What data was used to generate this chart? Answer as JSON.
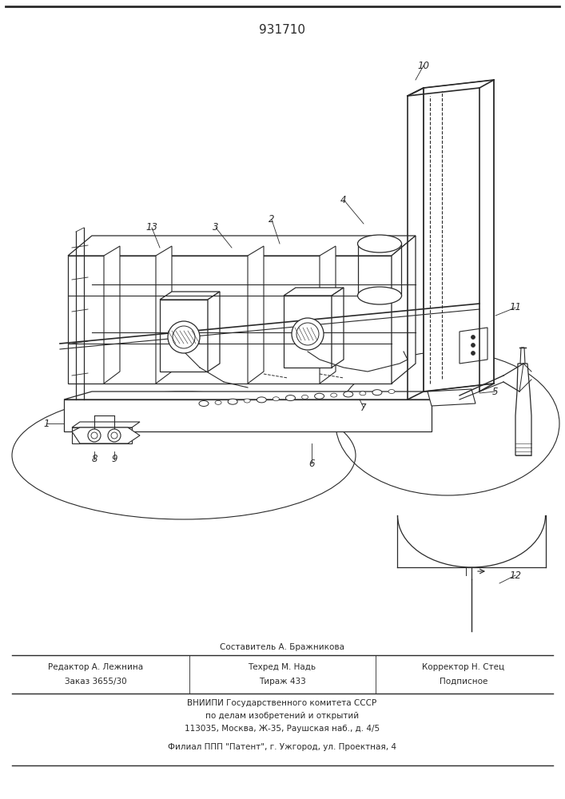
{
  "title": "931710",
  "bg_color": "#ffffff",
  "line_color": "#2a2a2a",
  "footer": {
    "line1_sestavitel": "Составитель А. Бражникова",
    "line2_redaktor": "Редактор А. Лежнина",
    "line2_tehred": "Техред М. Надь",
    "line2_korrektor": "Корректор Н. Стец",
    "line3_zakaz": "Заказ 3655/30",
    "line3_tirazh": "Тираж 433",
    "line3_podpisnoe": "Подписное",
    "line4": "ВНИИПИ Государственного комитета СССР",
    "line5": "по делам изобретений и открытий",
    "line6": "113035, Москва, Ж-35, Раушская наб., д. 4/5",
    "line7": "Филиал ППП \"Патент\", г. Ужгород, ул. Проектная, 4"
  }
}
